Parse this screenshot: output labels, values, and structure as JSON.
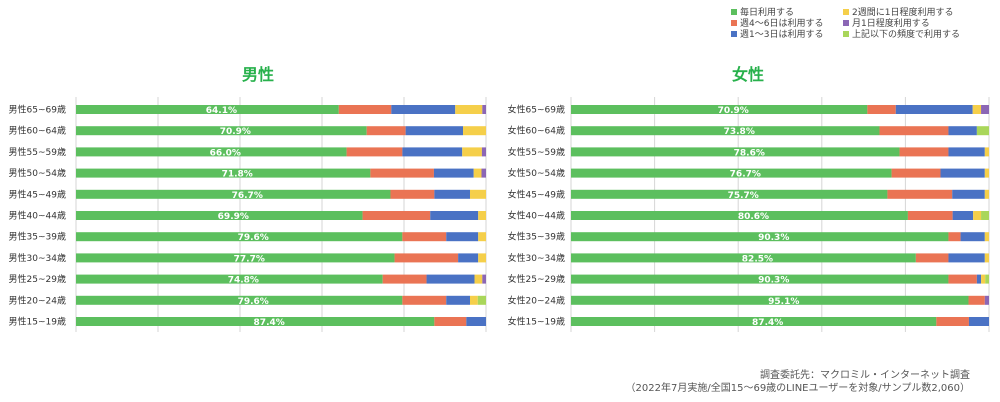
{
  "chart_data": [
    {
      "type": "bar",
      "orientation": "horizontal",
      "stacked": true,
      "percent": true,
      "title": "男性",
      "categories": [
        "男性65~69歳",
        "男性60~64歳",
        "男性55~59歳",
        "男性50~54歳",
        "男性45~49歳",
        "男性40~44歳",
        "男性35~39歳",
        "男性30~34歳",
        "男性25~29歳",
        "男性20~24歳",
        "男性15~19歳"
      ],
      "labels": [
        "64.1%",
        "70.9%",
        "66.0%",
        "71.8%",
        "76.7%",
        "69.9%",
        "79.6%",
        "77.7%",
        "74.8%",
        "79.6%",
        "87.4%"
      ],
      "xlim": [
        0,
        100
      ],
      "grid": true,
      "series": [
        {
          "name": "毎日利用する",
          "values": [
            64.1,
            70.9,
            66.0,
            71.8,
            76.7,
            69.9,
            79.6,
            77.7,
            74.8,
            79.6,
            87.4
          ]
        },
        {
          "name": "週4～6日は利用する",
          "values": [
            12.8,
            9.5,
            13.6,
            15.5,
            10.7,
            16.5,
            10.7,
            15.5,
            10.7,
            10.7,
            7.8
          ]
        },
        {
          "name": "週1～3日は利用する",
          "values": [
            15.6,
            14.0,
            14.6,
            9.7,
            8.7,
            11.7,
            7.8,
            4.9,
            11.7,
            5.8,
            4.8
          ]
        },
        {
          "name": "2週間に1日程度利用する",
          "values": [
            6.6,
            5.6,
            4.8,
            1.9,
            3.9,
            1.9,
            1.9,
            1.9,
            1.9,
            1.9,
            0.0
          ]
        },
        {
          "name": "月1日程度利用する",
          "values": [
            0.9,
            0.0,
            1.0,
            1.1,
            0.0,
            0.0,
            0.0,
            0.0,
            0.9,
            0.0,
            0.0
          ]
        },
        {
          "name": "上記以下の頻度で利用する",
          "values": [
            0.0,
            0.0,
            0.0,
            0.0,
            0.0,
            0.0,
            0.0,
            0.0,
            0.0,
            2.0,
            0.0
          ]
        }
      ]
    },
    {
      "type": "bar",
      "orientation": "horizontal",
      "stacked": true,
      "percent": true,
      "title": "女性",
      "categories": [
        "女性65~69歳",
        "女性60~64歳",
        "女性55~59歳",
        "女性50~54歳",
        "女性45~49歳",
        "女性40~44歳",
        "女性35~39歳",
        "女性30~34歳",
        "女性25~29歳",
        "女性20~24歳",
        "女性15~19歳"
      ],
      "labels": [
        "70.9%",
        "73.8%",
        "78.6%",
        "76.7%",
        "75.7%",
        "80.6%",
        "90.3%",
        "82.5%",
        "90.3%",
        "95.1%",
        "87.4%"
      ],
      "xlim": [
        0,
        100
      ],
      "grid": true,
      "series": [
        {
          "name": "毎日利用する",
          "values": [
            70.9,
            73.8,
            78.6,
            76.7,
            75.7,
            80.6,
            90.3,
            82.5,
            90.3,
            95.1,
            87.4
          ]
        },
        {
          "name": "週4～6日は利用する",
          "values": [
            6.8,
            16.5,
            11.7,
            11.7,
            15.5,
            10.7,
            2.9,
            7.8,
            6.8,
            3.9,
            7.8
          ]
        },
        {
          "name": "週1～3日は利用する",
          "values": [
            18.4,
            6.8,
            8.7,
            10.6,
            7.8,
            4.9,
            5.8,
            8.7,
            1.0,
            0.0,
            4.8
          ]
        },
        {
          "name": "2週間に1日程度利用する",
          "values": [
            2.0,
            0.0,
            1.0,
            1.0,
            1.0,
            1.9,
            1.0,
            1.0,
            1.0,
            0.0,
            0.0
          ]
        },
        {
          "name": "月1日程度利用する",
          "values": [
            1.9,
            0.0,
            0.0,
            0.0,
            0.0,
            0.0,
            0.0,
            0.0,
            0.0,
            1.0,
            0.0
          ]
        },
        {
          "name": "上記以下の頻度で利用する",
          "values": [
            0.0,
            2.9,
            0.0,
            0.0,
            0.0,
            1.9,
            0.0,
            0.0,
            0.9,
            0.0,
            0.0
          ]
        }
      ]
    }
  ],
  "legend": {
    "items": [
      {
        "label": "毎日利用する",
        "color": "#5cbf5e"
      },
      {
        "label": "週4～6日は利用する",
        "color": "#ea7454"
      },
      {
        "label": "週1～3日は利用する",
        "color": "#4a72c4"
      },
      {
        "label": "2週間に1日程度利用する",
        "color": "#f5cf4a"
      },
      {
        "label": "月1日程度利用する",
        "color": "#8b66b5"
      },
      {
        "label": "上記以下の頻度で利用する",
        "color": "#a9d65a"
      }
    ]
  },
  "colors": {
    "title": "#28b14c",
    "grid": "#d6d6d6",
    "bar_label": "#ffffff"
  },
  "source": {
    "line1": "調査委託先：マクロミル・インターネット調査",
    "line2": "（2022年7月実施/全国15～69歳のLINEユーザーを対象/サンプル数2,060）"
  }
}
